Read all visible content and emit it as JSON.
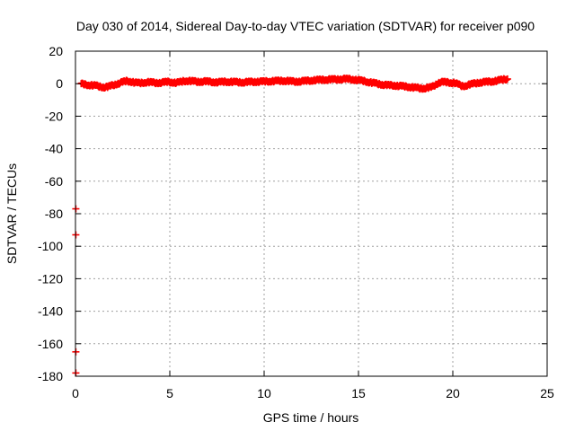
{
  "chart_data": {
    "type": "scatter",
    "title": "Day 030 of 2014, Sidereal Day-to-day VTEC variation (SDTVAR) for receiver p090",
    "xlabel": "GPS time / hours",
    "ylabel": "SDTVAR / TECUs",
    "xlim": [
      0,
      25
    ],
    "ylim": [
      -180,
      20
    ],
    "xticks": [
      0,
      5,
      10,
      15,
      20,
      25
    ],
    "yticks": [
      20,
      0,
      -20,
      -40,
      -60,
      -80,
      -100,
      -120,
      -140,
      -160,
      -180
    ],
    "grid": true,
    "marker": "plus",
    "series_color": "#ff0000",
    "outliers": [
      {
        "x": 0.02,
        "y": -77
      },
      {
        "x": 0.02,
        "y": -93
      },
      {
        "x": 0.02,
        "y": -165
      },
      {
        "x": 0.02,
        "y": -178
      }
    ],
    "series": [
      {
        "name": "SDTVAR",
        "x": [
          0.3,
          0.5,
          0.7,
          0.9,
          1.1,
          1.3,
          1.5,
          1.7,
          1.9,
          2.1,
          2.3,
          2.5,
          2.7,
          2.9,
          3.1,
          3.3,
          3.5,
          3.7,
          3.9,
          4.1,
          4.3,
          4.5,
          4.7,
          4.9,
          5.1,
          5.3,
          5.5,
          5.7,
          5.9,
          6.1,
          6.3,
          6.5,
          6.7,
          6.9,
          7.1,
          7.3,
          7.5,
          7.7,
          7.9,
          8.1,
          8.3,
          8.5,
          8.7,
          8.9,
          9.1,
          9.3,
          9.5,
          9.7,
          9.9,
          10.1,
          10.3,
          10.5,
          10.7,
          10.9,
          11.1,
          11.3,
          11.5,
          11.7,
          11.9,
          12.1,
          12.3,
          12.5,
          12.7,
          12.9,
          13.1,
          13.3,
          13.5,
          13.7,
          13.9,
          14.1,
          14.3,
          14.5,
          14.7,
          14.9,
          15.1,
          15.3,
          15.5,
          15.7,
          15.9,
          16.1,
          16.3,
          16.5,
          16.7,
          16.9,
          17.1,
          17.3,
          17.5,
          17.7,
          17.9,
          18.1,
          18.3,
          18.5,
          18.7,
          18.9,
          19.1,
          19.3,
          19.5,
          19.7,
          19.9,
          20.1,
          20.3,
          20.5,
          20.7,
          20.9,
          21.1,
          21.3,
          21.5,
          21.7,
          21.9,
          22.1,
          22.3,
          22.5,
          22.7,
          22.9
        ],
        "y": [
          0.0,
          -0.5,
          -0.8,
          -1.0,
          -1.2,
          -1.8,
          -2.2,
          -2.0,
          -1.2,
          -0.5,
          0.2,
          1.0,
          1.6,
          1.4,
          0.8,
          0.4,
          0.5,
          0.8,
          0.9,
          0.7,
          0.5,
          0.6,
          0.9,
          1.1,
          0.9,
          0.6,
          0.8,
          1.5,
          1.8,
          1.6,
          1.4,
          1.2,
          1.3,
          1.4,
          1.2,
          1.0,
          0.9,
          1.0,
          1.2,
          1.2,
          1.1,
          1.0,
          0.9,
          0.8,
          1.0,
          1.1,
          1.2,
          1.3,
          1.3,
          1.4,
          1.5,
          1.6,
          1.7,
          1.8,
          1.8,
          1.6,
          1.4,
          1.3,
          1.4,
          1.6,
          1.8,
          2.0,
          2.2,
          2.3,
          2.4,
          2.5,
          2.6,
          2.6,
          2.7,
          2.8,
          2.9,
          2.8,
          2.6,
          2.3,
          2.0,
          1.6,
          1.1,
          0.6,
          0.2,
          -0.2,
          -0.6,
          -0.9,
          -1.0,
          -1.1,
          -1.3,
          -1.5,
          -1.8,
          -2.0,
          -2.3,
          -2.6,
          -2.9,
          -2.8,
          -2.5,
          -2.0,
          -0.5,
          0.8,
          1.0,
          0.8,
          0.6,
          0.5,
          -0.5,
          -1.5,
          -1.2,
          -0.5,
          0.0,
          0.5,
          0.8,
          1.0,
          1.2,
          1.4,
          1.8,
          2.2,
          2.6,
          2.9
        ]
      }
    ]
  }
}
